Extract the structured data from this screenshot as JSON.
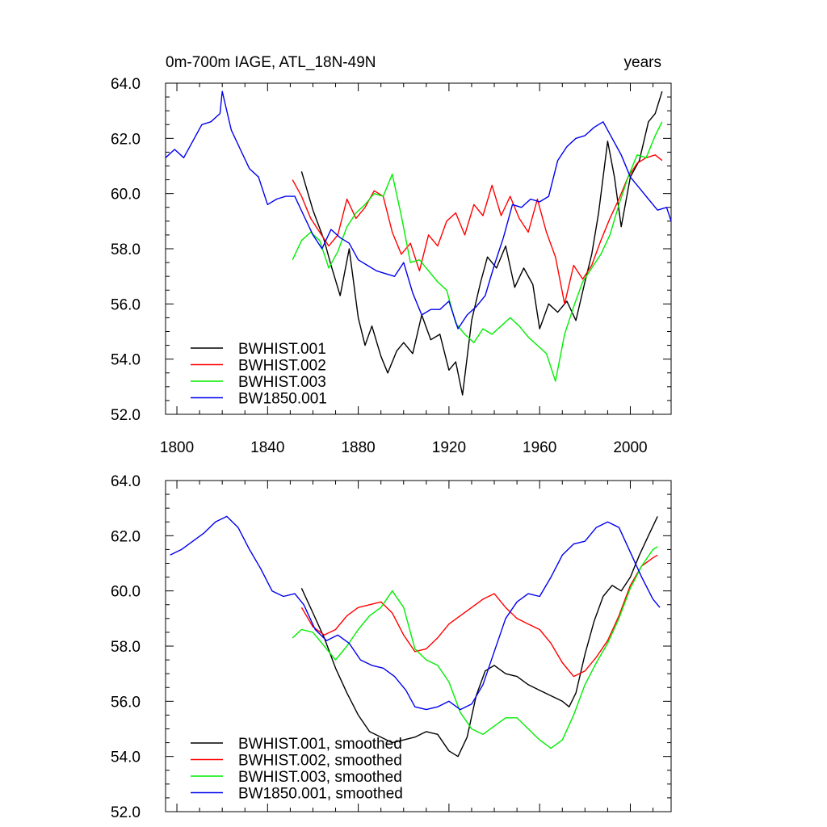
{
  "chart_data": [
    {
      "type": "line",
      "title": "0m-700m IAGE, ATL_18N-49N",
      "units": "years",
      "xlim": [
        1795,
        2018
      ],
      "ylim": [
        52,
        64
      ],
      "xticks": [
        1800,
        1840,
        1880,
        1920,
        1960,
        2000
      ],
      "yticks": [
        52,
        54,
        56,
        58,
        60,
        62,
        64
      ],
      "ytick_labels": [
        "52.0",
        "54.0",
        "56.0",
        "58.0",
        "60.0",
        "62.0",
        "64.0"
      ],
      "xtick_labels": [
        "1800",
        "1840",
        "1880",
        "1920",
        "1960",
        "2000"
      ],
      "legend_position": "lower-left",
      "series": [
        {
          "name": "BWHIST.001",
          "color": "#000000",
          "x": [
            1855,
            1860,
            1865,
            1868,
            1872,
            1876,
            1880,
            1883,
            1886,
            1890,
            1893,
            1897,
            1900,
            1904,
            1908,
            1912,
            1916,
            1920,
            1923,
            1926,
            1930,
            1934,
            1937,
            1941,
            1945,
            1949,
            1953,
            1957,
            1960,
            1964,
            1968,
            1972,
            1976,
            1980,
            1983,
            1986,
            1990,
            1993,
            1996,
            2000,
            2004,
            2008,
            2011,
            2014
          ],
          "y": [
            60.8,
            59.4,
            58.3,
            57.4,
            56.3,
            58.0,
            55.5,
            54.5,
            55.2,
            54.1,
            53.5,
            54.3,
            54.6,
            54.2,
            55.6,
            54.7,
            54.9,
            53.6,
            53.9,
            52.7,
            55.4,
            56.8,
            57.7,
            57.3,
            58.1,
            56.6,
            57.3,
            56.7,
            55.1,
            56.0,
            55.7,
            56.1,
            55.4,
            56.8,
            57.8,
            59.3,
            61.9,
            60.6,
            58.8,
            60.6,
            61.2,
            62.6,
            62.9,
            63.7
          ]
        },
        {
          "name": "BWHIST.002",
          "color": "#ff0000",
          "x": [
            1851,
            1855,
            1859,
            1863,
            1867,
            1871,
            1875,
            1879,
            1883,
            1887,
            1891,
            1895,
            1899,
            1903,
            1907,
            1911,
            1915,
            1919,
            1923,
            1927,
            1931,
            1935,
            1939,
            1943,
            1947,
            1951,
            1955,
            1959,
            1963,
            1967,
            1971,
            1975,
            1979,
            1983,
            1987,
            1991,
            1995,
            1999,
            2003,
            2007,
            2011,
            2014
          ],
          "y": [
            60.5,
            59.9,
            59.1,
            58.6,
            58.1,
            58.5,
            59.8,
            59.1,
            59.5,
            60.1,
            59.9,
            58.6,
            57.8,
            58.2,
            57.2,
            58.5,
            58.1,
            59.0,
            59.3,
            58.5,
            59.6,
            59.2,
            60.3,
            59.2,
            59.9,
            59.1,
            58.6,
            59.8,
            58.6,
            57.7,
            56.0,
            57.4,
            56.9,
            57.4,
            58.3,
            59.1,
            59.8,
            60.6,
            61.1,
            61.3,
            61.4,
            61.2
          ]
        },
        {
          "name": "BWHIST.003",
          "color": "#00ee00",
          "x": [
            1851,
            1855,
            1859,
            1863,
            1867,
            1871,
            1875,
            1879,
            1883,
            1887,
            1891,
            1895,
            1899,
            1903,
            1907,
            1911,
            1915,
            1919,
            1923,
            1927,
            1931,
            1935,
            1939,
            1943,
            1947,
            1951,
            1955,
            1959,
            1963,
            1967,
            1971,
            1975,
            1979,
            1983,
            1987,
            1991,
            1995,
            1999,
            2003,
            2007,
            2011,
            2014
          ],
          "y": [
            57.6,
            58.3,
            58.6,
            58.3,
            57.3,
            57.9,
            58.8,
            59.3,
            59.6,
            60.0,
            59.9,
            60.7,
            59.2,
            57.5,
            57.6,
            57.2,
            56.8,
            56.5,
            55.3,
            54.9,
            54.6,
            55.1,
            54.9,
            55.2,
            55.5,
            55.2,
            54.8,
            54.5,
            54.2,
            53.2,
            54.9,
            55.9,
            56.8,
            57.3,
            57.8,
            58.5,
            59.6,
            60.6,
            61.4,
            61.3,
            62.1,
            62.6
          ]
        },
        {
          "name": "BW1850.001",
          "color": "#0000ee",
          "x": [
            1795,
            1799,
            1803,
            1807,
            1811,
            1815,
            1819,
            1820,
            1824,
            1828,
            1832,
            1836,
            1840,
            1844,
            1848,
            1852,
            1856,
            1860,
            1864,
            1868,
            1872,
            1876,
            1880,
            1884,
            1888,
            1892,
            1896,
            1900,
            1904,
            1908,
            1912,
            1916,
            1920,
            1924,
            1928,
            1932,
            1936,
            1940,
            1944,
            1948,
            1952,
            1956,
            1960,
            1964,
            1968,
            1972,
            1976,
            1980,
            1984,
            1988,
            1992,
            1996,
            2000,
            2004,
            2008,
            2012,
            2016,
            2018
          ],
          "y": [
            61.3,
            61.6,
            61.3,
            61.9,
            62.5,
            62.6,
            62.9,
            63.7,
            62.3,
            61.6,
            60.9,
            60.6,
            59.6,
            59.8,
            59.9,
            59.9,
            59.2,
            58.5,
            58.0,
            58.7,
            58.4,
            58.2,
            57.6,
            57.4,
            57.2,
            57.1,
            57.0,
            57.5,
            56.4,
            55.6,
            55.8,
            55.8,
            56.1,
            55.1,
            55.6,
            55.9,
            56.3,
            57.4,
            58.4,
            59.6,
            59.5,
            59.8,
            59.7,
            59.9,
            61.2,
            61.7,
            62.0,
            62.1,
            62.4,
            62.6,
            62.0,
            61.4,
            60.6,
            60.2,
            59.8,
            59.4,
            59.5,
            59.0
          ]
        }
      ]
    },
    {
      "type": "line",
      "xlim": [
        1795,
        2018
      ],
      "ylim": [
        52,
        64
      ],
      "yticks": [
        52,
        54,
        56,
        58,
        60,
        62,
        64
      ],
      "ytick_labels": [
        "52.0",
        "54.0",
        "56.0",
        "58.0",
        "60.0",
        "62.0",
        "64.0"
      ],
      "legend_position": "lower-left",
      "series": [
        {
          "name": "BWHIST.001, smoothed",
          "color": "#000000",
          "x": [
            1855,
            1860,
            1865,
            1870,
            1875,
            1880,
            1885,
            1890,
            1895,
            1900,
            1905,
            1910,
            1915,
            1920,
            1924,
            1928,
            1932,
            1936,
            1940,
            1945,
            1950,
            1955,
            1960,
            1965,
            1970,
            1973,
            1976,
            1980,
            1984,
            1988,
            1992,
            1996,
            2000,
            2004,
            2008,
            2012
          ],
          "y": [
            60.1,
            59.2,
            58.3,
            57.2,
            56.3,
            55.5,
            54.9,
            54.7,
            54.5,
            54.6,
            54.7,
            54.9,
            54.8,
            54.2,
            54.0,
            54.7,
            56.2,
            57.1,
            57.3,
            57.0,
            56.9,
            56.6,
            56.4,
            56.2,
            56.0,
            55.8,
            56.3,
            57.7,
            58.9,
            59.8,
            60.2,
            60.0,
            60.5,
            61.3,
            62.0,
            62.7
          ]
        },
        {
          "name": "BWHIST.002, smoothed",
          "color": "#ff0000",
          "x": [
            1855,
            1860,
            1865,
            1870,
            1875,
            1880,
            1885,
            1890,
            1895,
            1900,
            1905,
            1910,
            1915,
            1920,
            1925,
            1930,
            1935,
            1940,
            1945,
            1950,
            1955,
            1960,
            1965,
            1970,
            1975,
            1980,
            1985,
            1990,
            1995,
            2000,
            2005,
            2010,
            2012
          ],
          "y": [
            59.4,
            58.7,
            58.4,
            58.6,
            59.1,
            59.4,
            59.5,
            59.6,
            59.2,
            58.4,
            57.8,
            57.9,
            58.3,
            58.8,
            59.1,
            59.4,
            59.7,
            59.9,
            59.4,
            59.0,
            58.8,
            58.6,
            58.1,
            57.4,
            56.9,
            57.1,
            57.6,
            58.2,
            59.1,
            60.2,
            60.9,
            61.2,
            61.3
          ]
        },
        {
          "name": "BWHIST.003, smoothed",
          "color": "#00ee00",
          "x": [
            1851,
            1855,
            1860,
            1865,
            1870,
            1875,
            1880,
            1885,
            1890,
            1895,
            1900,
            1905,
            1910,
            1915,
            1920,
            1925,
            1930,
            1935,
            1940,
            1945,
            1950,
            1955,
            1960,
            1965,
            1970,
            1975,
            1980,
            1985,
            1990,
            1995,
            2000,
            2005,
            2010,
            2012
          ],
          "y": [
            58.3,
            58.6,
            58.5,
            58.0,
            57.5,
            58.0,
            58.6,
            59.1,
            59.4,
            60.0,
            59.4,
            57.9,
            57.5,
            57.3,
            56.7,
            55.6,
            55.0,
            54.8,
            55.1,
            55.4,
            55.4,
            55.0,
            54.6,
            54.3,
            54.6,
            55.5,
            56.6,
            57.4,
            58.1,
            59.0,
            60.1,
            60.9,
            61.5,
            61.6
          ]
        },
        {
          "name": "BW1850.001, smoothed",
          "color": "#0000ee",
          "x": [
            1797,
            1802,
            1807,
            1812,
            1817,
            1822,
            1827,
            1832,
            1837,
            1842,
            1847,
            1852,
            1856,
            1861,
            1866,
            1871,
            1876,
            1881,
            1886,
            1891,
            1896,
            1901,
            1905,
            1910,
            1915,
            1920,
            1925,
            1930,
            1935,
            1940,
            1945,
            1950,
            1955,
            1960,
            1965,
            1970,
            1975,
            1980,
            1985,
            1990,
            1995,
            2000,
            2005,
            2010,
            2013
          ],
          "y": [
            61.3,
            61.5,
            61.8,
            62.1,
            62.5,
            62.7,
            62.3,
            61.5,
            60.8,
            60.0,
            59.8,
            59.9,
            59.5,
            58.6,
            58.2,
            58.4,
            58.1,
            57.5,
            57.3,
            57.2,
            56.9,
            56.4,
            55.8,
            55.7,
            55.8,
            56.0,
            55.7,
            55.9,
            56.6,
            57.8,
            59.0,
            59.6,
            59.9,
            59.8,
            60.5,
            61.3,
            61.7,
            61.8,
            62.3,
            62.5,
            62.3,
            61.4,
            60.5,
            59.7,
            59.4
          ]
        }
      ]
    }
  ]
}
